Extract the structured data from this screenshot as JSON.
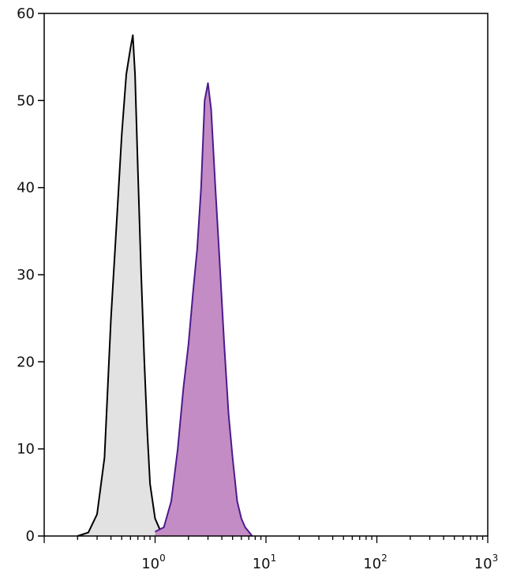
{
  "chart_data": {
    "type": "area",
    "title": "",
    "xlabel": "",
    "ylabel": "",
    "x_scale": "log",
    "xlim": [
      0.1,
      1000
    ],
    "ylim": [
      0,
      60
    ],
    "grid": false,
    "legend": "none",
    "y_ticks": [
      0,
      10,
      20,
      30,
      40,
      50,
      60
    ],
    "y_tick_labels": [
      "0",
      "10",
      "20",
      "30",
      "40",
      "50",
      "60"
    ],
    "x_major_ticks": [
      1,
      10,
      100,
      1000
    ],
    "x_tick_labels": [
      {
        "base": "10",
        "exp": "0"
      },
      {
        "base": "10",
        "exp": "1"
      },
      {
        "base": "10",
        "exp": "2"
      },
      {
        "base": "10",
        "exp": "3"
      }
    ],
    "series": [
      {
        "color": "#000000",
        "fill": "#e2e2e2",
        "x": [
          0.2,
          0.25,
          0.3,
          0.35,
          0.4,
          0.45,
          0.5,
          0.55,
          0.6,
          0.63,
          0.66,
          0.7,
          0.75,
          0.8,
          0.85,
          0.9,
          1.0,
          1.1,
          1.2,
          1.3
        ],
        "y": [
          0,
          0.4,
          2.5,
          9,
          25,
          36,
          46,
          53,
          56,
          57.5,
          53,
          42,
          30,
          20,
          12,
          6,
          2,
          0.8,
          0.3,
          0
        ]
      },
      {
        "color": "#4b1a8c",
        "fill": "#c48cc4",
        "x": [
          1.0,
          1.2,
          1.4,
          1.6,
          1.8,
          2.0,
          2.2,
          2.4,
          2.6,
          2.8,
          3.0,
          3.2,
          3.5,
          3.8,
          4.2,
          4.6,
          5.0,
          5.5,
          6.0,
          6.5,
          7.0,
          7.5
        ],
        "y": [
          0.5,
          1,
          4,
          10,
          17,
          22,
          28,
          33,
          40,
          50,
          52,
          49,
          40,
          32,
          22,
          14,
          9,
          4,
          2,
          1,
          0.5,
          0
        ]
      }
    ]
  }
}
